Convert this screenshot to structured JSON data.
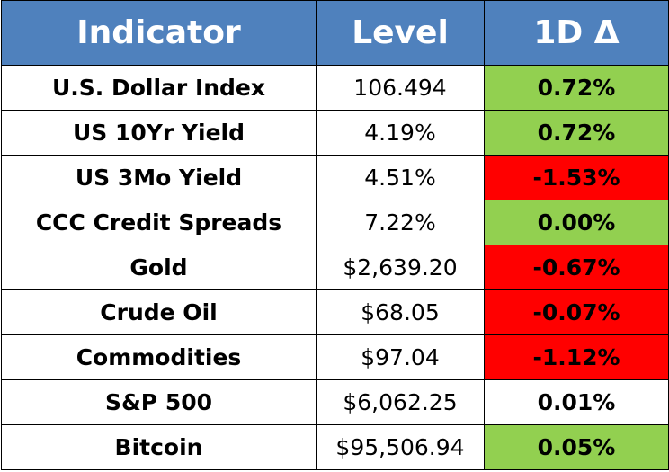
{
  "table": {
    "header": [
      "Indicator",
      "Level",
      "1D Δ"
    ],
    "rows": [
      [
        "U.S. Dollar Index",
        "106.494",
        "0.72%"
      ],
      [
        "US 10Yr Yield",
        "4.19%",
        "0.72%"
      ],
      [
        "US 3Mo Yield",
        "4.51%",
        "-1.53%"
      ],
      [
        "CCC Credit Spreads",
        "7.22%",
        "0.00%"
      ],
      [
        "Gold",
        "$2,639.20",
        "-0.67%"
      ],
      [
        "Crude Oil",
        "$68.05",
        "-0.07%"
      ],
      [
        "Commodities",
        "$97.04",
        "-1.12%"
      ],
      [
        "S&P 500",
        "$6,062.25",
        "0.01%"
      ],
      [
        "Bitcoin",
        "$95,506.94",
        "0.05%"
      ]
    ],
    "change_colors": [
      "#92d050",
      "#92d050",
      "#ff0000",
      "#92d050",
      "#ff0000",
      "#ff0000",
      "#ff0000",
      "#ffffff",
      "#92d050"
    ]
  }
}
